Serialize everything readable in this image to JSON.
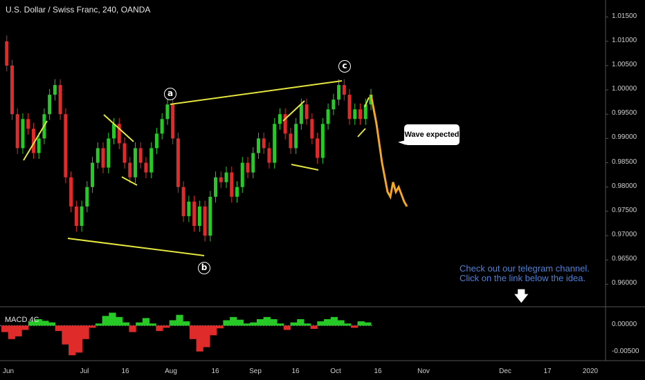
{
  "header": {
    "symbol_title": "U.S. Dollar / Swiss Franc, 240, OANDA"
  },
  "indicator": {
    "name": "MACD 4C"
  },
  "annotations": {
    "bubble_text": "Wave expected",
    "promo_line1": "Check out our telegram channel.",
    "promo_line2": "Click on the link below the idea.",
    "wave_labels": [
      "a",
      "b",
      "c"
    ]
  },
  "colors": {
    "up": "#26c926",
    "down": "#e02b2b",
    "projection": "#f5a623",
    "trendline": "#e6e640",
    "promo": "#4f80d8"
  },
  "chart_data": [
    {
      "type": "line",
      "title": "U.S. Dollar / Swiss Franc, 240, OANDA",
      "xlabel": "",
      "ylabel": "",
      "x_ticks": [
        "Jun",
        "Jul",
        "16",
        "Aug",
        "16",
        "Sep",
        "16",
        "Oct",
        "16",
        "Nov",
        "Dec",
        "17",
        "2020"
      ],
      "y_ticks": [
        "1.01500",
        "1.01000",
        "1.00500",
        "1.00000",
        "0.99500",
        "0.99000",
        "0.98500",
        "0.98000",
        "0.97500",
        "0.97000",
        "0.96500",
        "0.96000"
      ],
      "ylim": [
        0.9555,
        1.0185
      ],
      "series": [
        {
          "name": "",
          "values": [
            1.01,
            1.005,
            0.995,
            0.988,
            0.994,
            0.992,
            0.987,
            0.99,
            0.995,
            0.999,
            1.001,
            0.995,
            0.982,
            0.976,
            0.972,
            0.976,
            0.98,
            0.985,
            0.988,
            0.984,
            0.99,
            0.993,
            0.989,
            0.985,
            0.982,
            0.988,
            0.985,
            0.983,
            0.988,
            0.991,
            0.994,
            0.997,
            0.99,
            0.98,
            0.974,
            0.977,
            0.972,
            0.976,
            0.97,
            0.978,
            0.982,
            0.981,
            0.983,
            0.978,
            0.98,
            0.985,
            0.983,
            0.987,
            0.99,
            0.988,
            0.985,
            0.993,
            0.995,
            0.991,
            0.988,
            0.993,
            0.997,
            0.994,
            0.99,
            0.986,
            0.993,
            0.996,
            0.998,
            1.001,
            0.999,
            0.994,
            0.996,
            0.994,
            0.997,
            0.999
          ]
        },
        {
          "name": "",
          "values": [
            0.999,
            0.996,
            0.993,
            0.989,
            0.985,
            0.982,
            0.979,
            0.978,
            0.981,
            0.979,
            0.98,
            0.9785,
            0.977,
            0.976
          ]
        }
      ]
    },
    {
      "type": "bar",
      "title": "MACD 4C",
      "y_ticks": [
        "0.00000",
        "-0.00500"
      ],
      "ylim": [
        -0.0065,
        0.0035
      ],
      "values": [
        -0.0012,
        -0.0025,
        -0.002,
        -0.0008,
        0.0008,
        0.0012,
        0.0009,
        0.0006,
        -0.001,
        -0.0035,
        -0.0055,
        -0.005,
        -0.0025,
        -0.0004,
        0.0004,
        0.0018,
        0.0024,
        0.0016,
        0.0006,
        -0.0012,
        0.0006,
        0.0014,
        0.0004,
        -0.001,
        -0.0004,
        0.001,
        0.002,
        0.0008,
        -0.0025,
        -0.0048,
        -0.004,
        -0.0018,
        -0.0005,
        0.001,
        0.0016,
        0.0011,
        0.0004,
        0.0006,
        0.0012,
        0.0016,
        0.0012,
        0.0004,
        -0.0008,
        0.0006,
        0.0012,
        0.0004,
        -0.0006,
        0.0008,
        0.0012,
        0.0016,
        0.001,
        0.0004,
        -0.0004,
        0.0008,
        0.0006
      ]
    }
  ]
}
